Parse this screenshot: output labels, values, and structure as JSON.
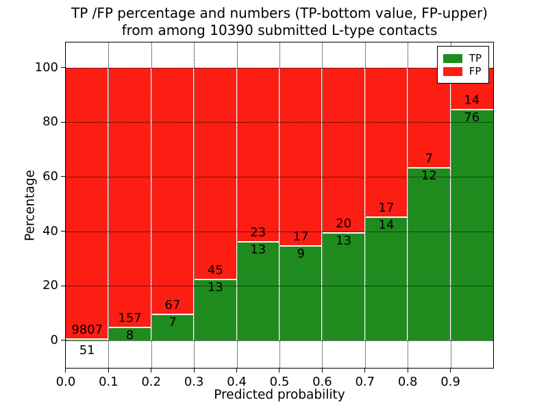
{
  "figure": {
    "background": "#ffffff"
  },
  "chart_data": {
    "type": "bar",
    "subtype": "stacked-percentage-histogram",
    "title_lines": [
      "TP /FP percentage and numbers (TP-bottom value, FP-upper)",
      "from among 10390 submitted L-type contacts"
    ],
    "xlabel": "Predicted probability",
    "ylabel": "Percentage",
    "total_contacts": 10390,
    "bin_edges": [
      0.0,
      0.1,
      0.2,
      0.3,
      0.4,
      0.5,
      0.6,
      0.7,
      0.8,
      0.9,
      1.0
    ],
    "x_tick_labels": [
      "0.0",
      "0.1",
      "0.2",
      "0.3",
      "0.4",
      "0.5",
      "0.6",
      "0.7",
      "0.8",
      "0.9"
    ],
    "y_ticks": [
      0,
      20,
      40,
      60,
      80,
      100
    ],
    "ylim": [
      -10,
      109
    ],
    "grid": "dotted-black",
    "legend_position": "upper-right",
    "series": [
      {
        "name": "TP",
        "color": "#1f8b1f",
        "counts": [
          51,
          8,
          7,
          13,
          13,
          9,
          13,
          14,
          12,
          76
        ]
      },
      {
        "name": "FP",
        "color": "#fc1d13",
        "counts": [
          9807,
          157,
          67,
          45,
          23,
          17,
          20,
          17,
          7,
          14
        ]
      }
    ],
    "tp_percent_per_bin": [
      0.52,
      4.85,
      9.46,
      22.41,
      36.11,
      34.62,
      39.39,
      45.16,
      63.16,
      84.44
    ],
    "bar_edge_color": "#ffffff",
    "colors": {
      "tp_green": "#1f8b1f",
      "fp_red": "#fc1d13",
      "grid": "#000000",
      "frame": "#000000",
      "background": "#ffffff"
    }
  }
}
